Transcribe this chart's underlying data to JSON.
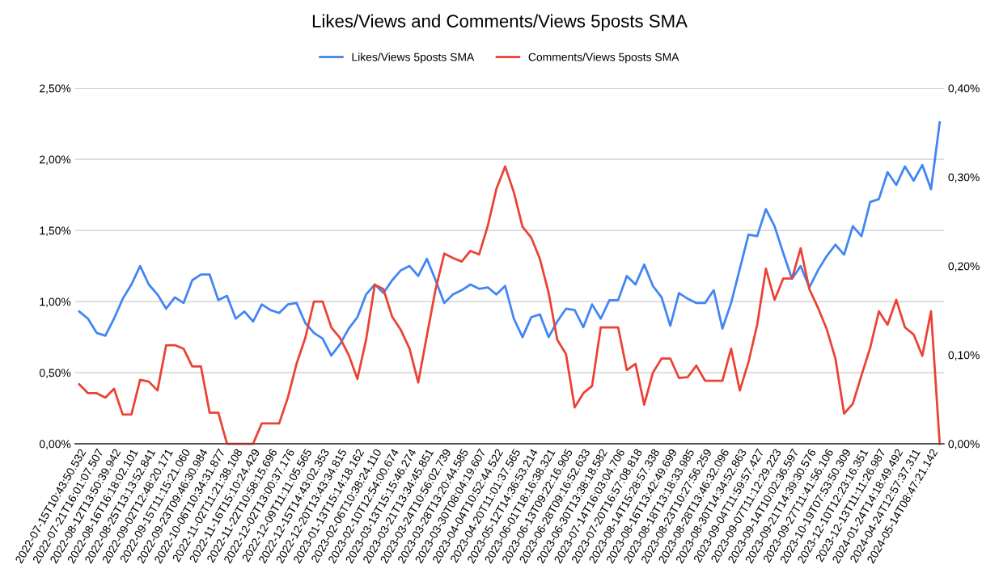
{
  "chart_data": {
    "type": "line",
    "title": "Likes/Views and Comments/Views 5posts SMA",
    "categories": [
      "2022-07-15T10:43:50.532",
      null,
      "2022-07-21T16:01:07.507",
      null,
      "2022-08-12T13:50:39.942",
      null,
      "2022-08-16T16:18:02.101",
      null,
      "2022-08-25T13:13:52.841",
      null,
      "2022-09-02T12:48:20.171",
      null,
      "2022-09-15T11:15:21.060",
      null,
      "2022-09-23T09:46:30.984",
      null,
      "2022-10-06T10:34:31.877",
      null,
      "2022-11-02T11:21:38.108",
      null,
      "2022-11-16T15:10:24.429",
      null,
      "2022-11-22T10:58:15.696",
      null,
      "2022-12-02T13:00:37.176",
      null,
      "2022-12-09T11:11:05.565",
      null,
      "2022-12-15T14:43:02.353",
      null,
      "2022-12-20T13:43:34.815",
      null,
      "2023-01-13T15:14:18.162",
      null,
      "2023-02-06T10:38:24.110",
      null,
      "2023-02-10T12:54:00.674",
      null,
      "2023-03-13T15:15:46.274",
      null,
      "2023-03-21T13:34:45.851",
      null,
      "2023-03-24T10:56:02.739",
      null,
      "2023-03-28T13:20:44.585",
      null,
      "2023-03-30T08:04:19.607",
      null,
      "2023-04-04T10:52:44.522",
      null,
      "2023-04-20T11:01:37.565",
      null,
      "2023-05-12T14:36:53.214",
      null,
      "2023-06-01T18:16:38.321",
      null,
      "2023-06-13T09:22:16.905",
      null,
      "2023-06-28T09:16:52.633",
      null,
      "2023-06-30T13:38:18.582",
      null,
      "2023-07-14T16:03:04.706",
      null,
      "2023-07-20T16:57:08.818",
      null,
      "2023-08-14T15:28:57.338",
      null,
      "2023-08-16T13:42:49.699",
      null,
      "2023-08-18T13:18:33.985",
      null,
      "2023-08-23T10:27:56.259",
      null,
      "2023-08-28T13:46:32.096",
      null,
      "2023-08-30T14:34:52.863",
      null,
      "2023-09-04T11:59:57.427",
      null,
      "2023-09-07T11:12:29.223",
      null,
      "2023-09-14T10:02:36.597",
      null,
      "2023-09-21T14:39:30.576",
      null,
      "2023-09-27T11:41:56.106",
      null,
      "2023-10-19T07:53:50.309",
      null,
      "2023-12-10T12:23:16.351",
      null,
      "2023-12-13T11:11:26.987",
      null,
      "2024-01-24T14:18:49.492",
      null,
      "2024-04-24T12:57:37.311",
      null,
      "2024-05-14T08:47:21.142",
      null
    ],
    "series": [
      {
        "name": "Likes/Views 5posts SMA",
        "color": "#4285f4",
        "values": [
          0.93,
          0.88,
          0.78,
          0.76,
          0.88,
          1.02,
          1.12,
          1.25,
          1.12,
          1.05,
          0.95,
          1.03,
          0.99,
          1.15,
          1.19,
          1.19,
          1.01,
          1.04,
          0.88,
          0.93,
          0.86,
          0.98,
          0.94,
          0.92,
          0.98,
          0.99,
          0.85,
          0.78,
          0.74,
          0.62,
          0.7,
          0.81,
          0.89,
          1.05,
          1.12,
          1.06,
          1.15,
          1.22,
          1.25,
          1.18,
          1.3,
          1.15,
          0.99,
          1.05,
          1.08,
          1.12,
          1.09,
          1.1,
          1.05,
          1.11,
          0.88,
          0.75,
          0.89,
          0.91,
          0.75,
          0.86,
          0.95,
          0.94,
          0.82,
          0.98,
          0.88,
          1.01,
          1.01,
          1.18,
          1.12,
          1.26,
          1.11,
          1.03,
          0.83,
          1.06,
          1.02,
          0.99,
          0.99,
          1.08,
          0.81,
          0.99,
          1.23,
          1.47,
          1.46,
          1.65,
          1.53,
          1.34,
          1.16,
          1.25,
          1.1,
          1.22,
          1.32,
          1.4,
          1.33,
          1.53,
          1.46,
          1.7,
          1.72,
          1.91,
          1.82,
          1.95,
          1.85,
          1.96,
          1.79,
          2.26
        ]
      },
      {
        "name": "Comments/Views 5posts SMA",
        "color": "#ea4335",
        "axis": "y2",
        "values": [
          0.067,
          0.057,
          0.057,
          0.052,
          0.062,
          0.033,
          0.033,
          0.072,
          0.07,
          0.06,
          0.111,
          0.111,
          0.107,
          0.087,
          0.087,
          0.035,
          0.035,
          0,
          0,
          0,
          0,
          0.023,
          0.023,
          0.023,
          0.052,
          0.09,
          0.119,
          0.16,
          0.16,
          0.131,
          0.119,
          0.1,
          0.073,
          0.117,
          0.179,
          0.174,
          0.143,
          0.128,
          0.107,
          0.069,
          0.122,
          0.174,
          0.214,
          0.209,
          0.205,
          0.217,
          0.213,
          0.245,
          0.287,
          0.312,
          0.283,
          0.244,
          0.232,
          0.208,
          0.17,
          0.117,
          0.101,
          0.041,
          0.057,
          0.065,
          0.131,
          0.131,
          0.131,
          0.083,
          0.09,
          0.044,
          0.08,
          0.096,
          0.096,
          0.074,
          0.075,
          0.088,
          0.071,
          0.071,
          0.071,
          0.107,
          0.06,
          0.092,
          0.134,
          0.197,
          0.162,
          0.186,
          0.186,
          0.22,
          0.174,
          0.153,
          0.129,
          0.096,
          0.034,
          0.045,
          0.077,
          0.108,
          0.149,
          0.134,
          0.162,
          0.131,
          0.123,
          0.099,
          0.149,
          0
        ]
      }
    ],
    "ylim": [
      0,
      2.5
    ],
    "yticks": [
      {
        "value": 0,
        "label": "0,00%"
      },
      {
        "value": 0.5,
        "label": "0,50%"
      },
      {
        "value": 1.0,
        "label": "1,00%"
      },
      {
        "value": 1.5,
        "label": "1,50%"
      },
      {
        "value": 2.0,
        "label": "2,00%"
      },
      {
        "value": 2.5,
        "label": "2,50%"
      }
    ],
    "y2lim": [
      0,
      0.4
    ],
    "y2ticks": [
      {
        "value": 0,
        "label": "0,00%"
      },
      {
        "value": 0.1,
        "label": "0,10%"
      },
      {
        "value": 0.2,
        "label": "0,20%"
      },
      {
        "value": 0.3,
        "label": "0,30%"
      },
      {
        "value": 0.4,
        "label": "0,40%"
      }
    ],
    "grid": "y",
    "legend": "top",
    "marker": "none",
    "line_style": "solid"
  }
}
